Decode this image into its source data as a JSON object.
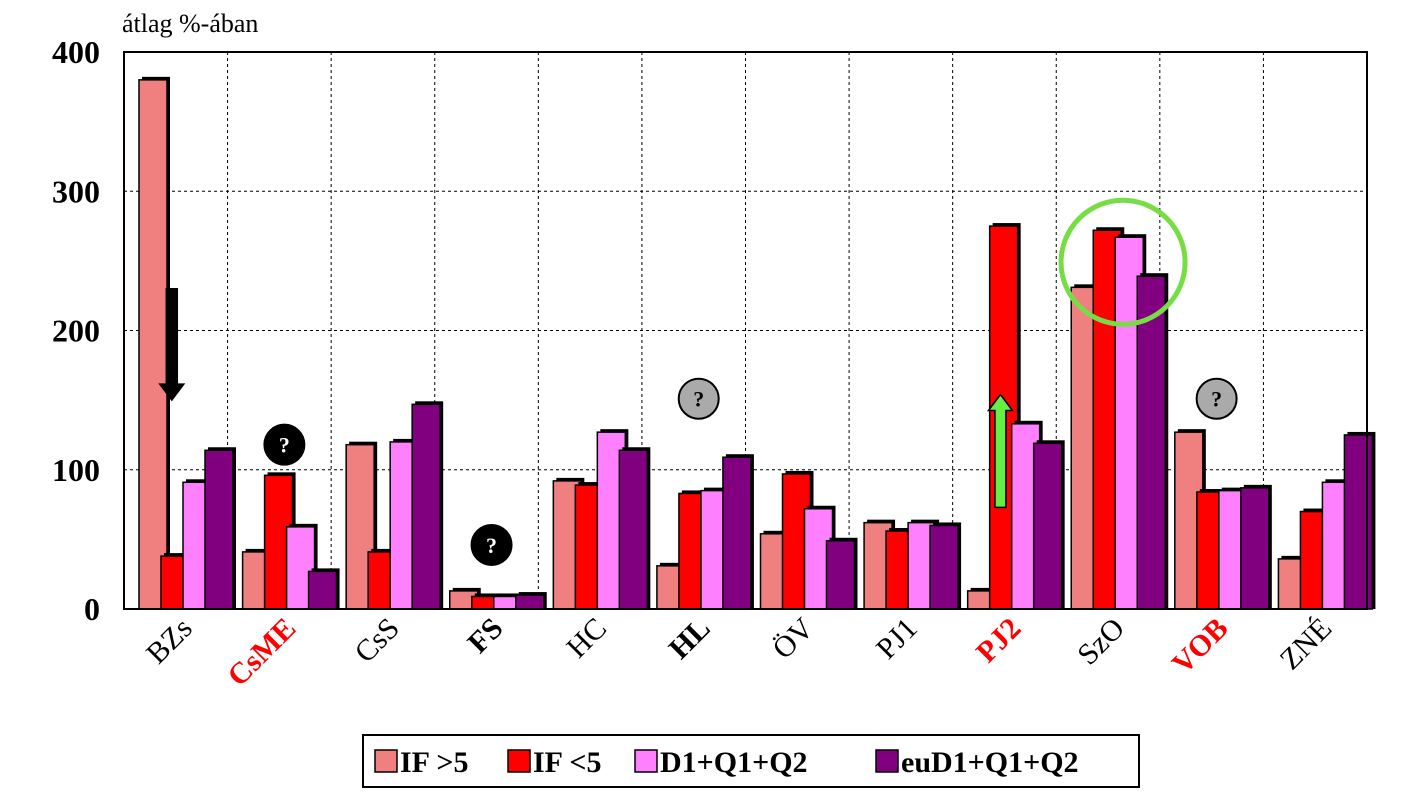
{
  "chart_data": {
    "type": "bar",
    "ylabel": "átlag %-ában",
    "ylim": [
      0,
      400
    ],
    "yticks": [
      "0",
      "100",
      "200",
      "300",
      "400"
    ],
    "grid": true,
    "legend_position": "bottom",
    "categories": [
      "BZs",
      "CsME",
      "CsS",
      "FS",
      "HC",
      "HL",
      "ÖV",
      "PJ1",
      "PJ2",
      "SzO",
      "VOB",
      "ZNÉ"
    ],
    "category_styles": [
      "normal",
      "red-bold",
      "normal",
      "bold",
      "normal",
      "bold",
      "normal",
      "normal",
      "red-bold",
      "normal",
      "red-bold",
      "normal"
    ],
    "series": [
      {
        "name": "IF >5",
        "color": "#f08080",
        "values": [
          380,
          41,
          118,
          13,
          92,
          31,
          54,
          62,
          13,
          231,
          127,
          36
        ]
      },
      {
        "name": "IF <5",
        "color": "#ff0000",
        "values": [
          38,
          96,
          41,
          9,
          89,
          83,
          97,
          56,
          275,
          272,
          84,
          70
        ]
      },
      {
        "name": "D1+Q1+Q2",
        "color": "#ff80ff",
        "values": [
          91,
          59,
          120,
          9,
          127,
          85,
          72,
          62,
          133,
          267,
          85,
          91
        ]
      },
      {
        "name": "euD1+Q1+Q2",
        "color": "#800080",
        "values": [
          114,
          27,
          147,
          10,
          114,
          109,
          49,
          60,
          119,
          239,
          87,
          125
        ]
      }
    ],
    "annotations": {
      "question_mark": "?",
      "question_markers": [
        {
          "category": "CsME",
          "y": 118,
          "style": "black"
        },
        {
          "category": "FS",
          "y": 46,
          "style": "black"
        },
        {
          "category": "HL",
          "y": 151,
          "style": "gray"
        },
        {
          "category": "VOB",
          "y": 151,
          "style": "gray"
        }
      ],
      "arrows": [
        {
          "category": "BZs",
          "direction": "down",
          "color": "#000000",
          "from": 230,
          "to": 150
        },
        {
          "category": "PJ2",
          "direction": "up",
          "color": "#66ee44",
          "from": 73,
          "to": 154
        }
      ],
      "highlight_circle": {
        "category": "SzO",
        "y": 249,
        "color": "#77dd44"
      }
    }
  }
}
